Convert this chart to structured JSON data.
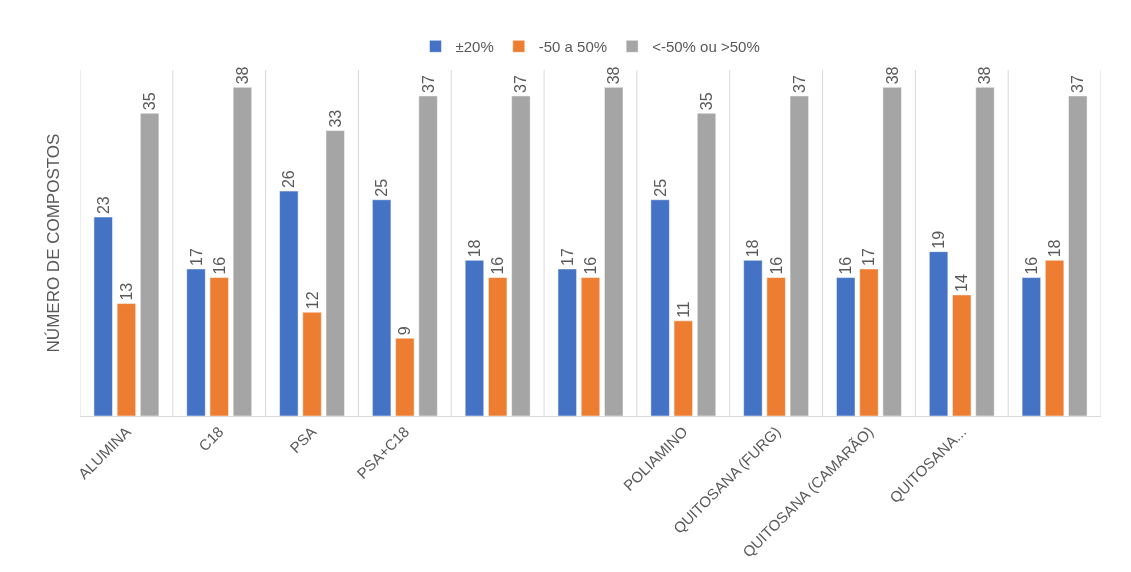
{
  "chart_data": {
    "type": "bar",
    "ylabel": "NÚMERO DE COMPOSTOS",
    "categories": [
      "ALUMINA",
      "C18",
      "PSA",
      "PSA+C18",
      null,
      null,
      "POLIAMINO",
      "QUITOSANA (FURG)",
      "QUITOSANA (CAMARÃO)",
      "QUITOSANA...",
      null
    ],
    "series": [
      {
        "name": "±20%",
        "color": "#4472c4",
        "values": [
          23,
          17,
          26,
          25,
          18,
          17,
          25,
          18,
          16,
          19,
          16
        ]
      },
      {
        "name": "-50 a 50%",
        "color": "#ed7d31",
        "values": [
          13,
          16,
          12,
          9,
          16,
          16,
          11,
          16,
          17,
          14,
          18
        ]
      },
      {
        "name": "<-50% ou >50%",
        "color": "#a5a5a5",
        "values": [
          35,
          38,
          33,
          37,
          37,
          38,
          35,
          37,
          38,
          38,
          37
        ]
      }
    ],
    "data_labels": true,
    "legend": "top",
    "grid": "x"
  }
}
